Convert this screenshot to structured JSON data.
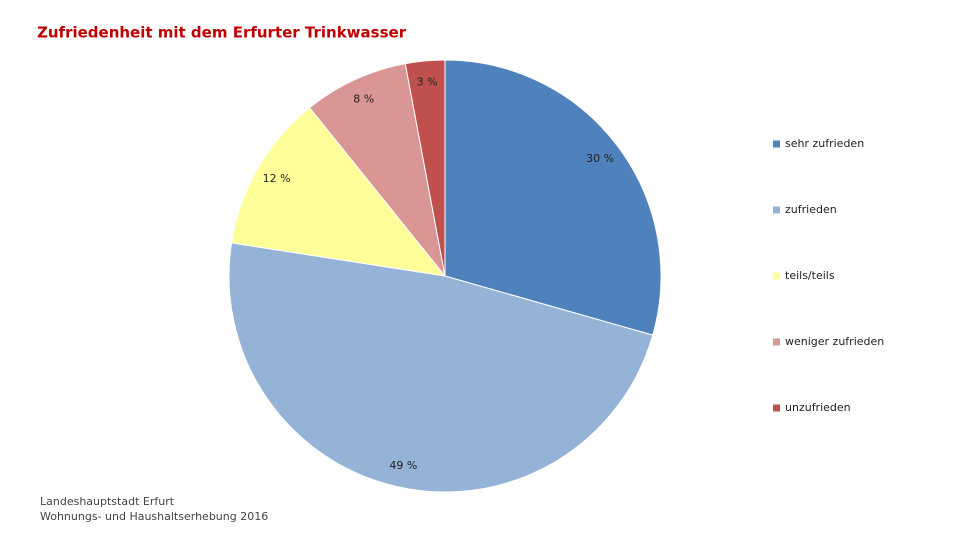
{
  "chart_data": {
    "type": "pie",
    "title": "Zufriedenheit mit dem Erfurter Trinkwasser",
    "categories": [
      "sehr zufrieden",
      "zufrieden",
      "teils/teils",
      "weniger zufrieden",
      "unzufrieden"
    ],
    "values": [
      30,
      49,
      12,
      8,
      3
    ],
    "value_labels": [
      "30 %",
      "49 %",
      "12 %",
      "8 %",
      "3 %"
    ],
    "colors": [
      "#4f81bd",
      "#95b3d7",
      "#ffff99",
      "#d99694",
      "#c0504d"
    ],
    "legend": "right",
    "source": [
      "Landeshauptstadt Erfurt",
      "Wohnungs- und Haushaltserhebung 2016"
    ]
  }
}
